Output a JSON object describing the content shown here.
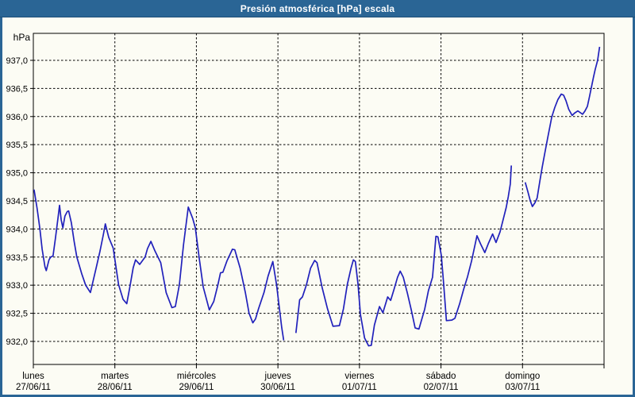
{
  "window": {
    "title": "Presión atmosférica [hPa] escala"
  },
  "colors": {
    "titlebar": "#2A6595",
    "titlebar_edge": "#1D4E78",
    "frame": "#2A6595",
    "content_background": "#FCFCF4",
    "line": "#2121BB",
    "grid": "#000000",
    "text": "#000000"
  },
  "chart_data": {
    "type": "line",
    "title": "Presión atmosférica [hPa] escala",
    "unit_label": "hPa",
    "ylabel": "hPa",
    "xlabel": "",
    "grid": "dashed",
    "legend": "none",
    "ylim": [
      931.59,
      937.48
    ],
    "x_range_hours": [
      0,
      168
    ],
    "y_ticks": [
      "937,0",
      "936,5",
      "936,0",
      "935,5",
      "935,0",
      "934,5",
      "934,0",
      "933,5",
      "933,0",
      "932,5",
      "932,0"
    ],
    "y_tick_values": [
      937.0,
      936.5,
      936.0,
      935.5,
      935.0,
      934.5,
      934.0,
      933.5,
      933.0,
      932.5,
      932.0
    ],
    "x_days": [
      {
        "name": "lunes",
        "date": "27/06/11"
      },
      {
        "name": "martes",
        "date": "28/06/11"
      },
      {
        "name": "miércoles",
        "date": "29/06/11"
      },
      {
        "name": "jueves",
        "date": "30/06/11"
      },
      {
        "name": "viernes",
        "date": "01/07/11"
      },
      {
        "name": "sábado",
        "date": "02/07/11"
      },
      {
        "name": "domingo",
        "date": "03/07/11"
      }
    ],
    "series": [
      {
        "name": "presión atmosférica",
        "color": "#2121BB",
        "x_unit": "hours_from_monday_00",
        "segments": [
          [
            [
              0.2,
              934.7
            ],
            [
              1.1,
              934.37
            ],
            [
              1.9,
              934.02
            ],
            [
              2.6,
              933.64
            ],
            [
              3.4,
              933.33
            ],
            [
              3.8,
              933.26
            ],
            [
              4.6,
              933.45
            ],
            [
              5.1,
              933.5
            ],
            [
              5.8,
              933.52
            ],
            [
              6.5,
              933.83
            ],
            [
              7.3,
              934.21
            ],
            [
              7.7,
              934.42
            ],
            [
              8.2,
              934.16
            ],
            [
              8.7,
              934.02
            ],
            [
              9.3,
              934.23
            ],
            [
              10.0,
              934.31
            ],
            [
              10.4,
              934.32
            ],
            [
              11.2,
              934.11
            ],
            [
              12.0,
              933.78
            ],
            [
              12.8,
              933.5
            ],
            [
              14.2,
              933.21
            ],
            [
              15.4,
              933.0
            ],
            [
              16.8,
              932.87
            ],
            [
              18.5,
              933.31
            ],
            [
              19.6,
              933.6
            ],
            [
              20.6,
              933.9
            ],
            [
              21.2,
              934.09
            ],
            [
              22.2,
              933.85
            ],
            [
              23.5,
              933.66
            ],
            [
              25.1,
              933.01
            ],
            [
              26.4,
              932.75
            ],
            [
              27.5,
              932.67
            ],
            [
              28.5,
              933.0
            ],
            [
              29.4,
              933.31
            ],
            [
              30.1,
              933.45
            ],
            [
              31.3,
              933.37
            ],
            [
              32.9,
              933.5
            ],
            [
              33.6,
              933.65
            ],
            [
              34.6,
              933.78
            ],
            [
              35.8,
              933.61
            ],
            [
              37.5,
              933.4
            ],
            [
              39.1,
              932.87
            ],
            [
              40.8,
              932.6
            ],
            [
              41.8,
              932.62
            ],
            [
              43.0,
              933.01
            ],
            [
              44.2,
              933.72
            ],
            [
              45.6,
              934.39
            ],
            [
              46.9,
              934.19
            ],
            [
              47.7,
              934.02
            ],
            [
              48.8,
              933.49
            ],
            [
              50.0,
              932.97
            ],
            [
              51.8,
              932.56
            ],
            [
              53.1,
              932.71
            ],
            [
              54.3,
              933.0
            ],
            [
              55.1,
              933.22
            ],
            [
              55.8,
              933.23
            ],
            [
              57.0,
              933.43
            ],
            [
              58.6,
              933.64
            ],
            [
              59.3,
              933.63
            ],
            [
              60.9,
              933.3
            ],
            [
              62.4,
              932.87
            ],
            [
              63.5,
              932.5
            ],
            [
              64.6,
              932.33
            ],
            [
              65.4,
              932.4
            ],
            [
              66.3,
              932.58
            ],
            [
              67.9,
              932.87
            ],
            [
              69.1,
              933.16
            ],
            [
              70.5,
              933.42
            ],
            [
              71.6,
              933.01
            ],
            [
              72.4,
              932.6
            ],
            [
              73.1,
              932.25
            ],
            [
              73.7,
              932.02
            ]
          ],
          [
            [
              77.3,
              932.15
            ],
            [
              78.4,
              932.74
            ],
            [
              79.2,
              932.79
            ],
            [
              80.4,
              933.01
            ],
            [
              81.6,
              933.3
            ],
            [
              82.8,
              933.44
            ],
            [
              83.5,
              933.4
            ],
            [
              85.0,
              932.96
            ],
            [
              86.6,
              932.58
            ],
            [
              88.2,
              932.27
            ],
            [
              90.1,
              932.28
            ],
            [
              91.3,
              932.58
            ],
            [
              92.4,
              933.01
            ],
            [
              93.5,
              933.3
            ],
            [
              94.2,
              933.45
            ],
            [
              94.8,
              933.42
            ],
            [
              95.6,
              933.01
            ],
            [
              96.3,
              932.48
            ],
            [
              97.5,
              932.06
            ],
            [
              98.7,
              931.92
            ],
            [
              99.5,
              931.93
            ],
            [
              100.4,
              932.29
            ],
            [
              101.9,
              932.62
            ],
            [
              102.9,
              932.51
            ],
            [
              104.3,
              932.79
            ],
            [
              105.2,
              932.73
            ],
            [
              106.2,
              932.93
            ],
            [
              107.2,
              933.14
            ],
            [
              108.0,
              933.25
            ],
            [
              108.9,
              933.14
            ],
            [
              110.1,
              932.86
            ],
            [
              111.3,
              932.55
            ],
            [
              112.4,
              932.24
            ],
            [
              113.5,
              932.22
            ],
            [
              115.2,
              932.57
            ],
            [
              116.3,
              932.9
            ],
            [
              117.5,
              933.14
            ],
            [
              118.5,
              933.87
            ],
            [
              119.1,
              933.86
            ],
            [
              120.1,
              933.53
            ],
            [
              120.8,
              933.01
            ],
            [
              121.6,
              932.37
            ],
            [
              123.2,
              932.38
            ],
            [
              124.1,
              932.41
            ],
            [
              125.5,
              932.67
            ],
            [
              126.7,
              932.93
            ],
            [
              127.8,
              933.15
            ],
            [
              129.0,
              933.43
            ],
            [
              130.6,
              933.88
            ],
            [
              131.7,
              933.73
            ],
            [
              132.9,
              933.58
            ],
            [
              134.0,
              933.75
            ],
            [
              135.2,
              933.91
            ],
            [
              136.2,
              933.76
            ],
            [
              137.4,
              933.95
            ],
            [
              138.4,
              934.19
            ],
            [
              139.2,
              934.38
            ],
            [
              139.8,
              934.57
            ],
            [
              140.4,
              934.8
            ],
            [
              140.7,
              935.13
            ]
          ],
          [
            [
              144.8,
              934.83
            ],
            [
              145.6,
              934.66
            ],
            [
              146.3,
              934.5
            ],
            [
              146.9,
              934.4
            ],
            [
              147.7,
              934.47
            ],
            [
              148.3,
              934.55
            ],
            [
              149.1,
              934.85
            ],
            [
              149.8,
              935.1
            ],
            [
              150.6,
              935.36
            ],
            [
              151.4,
              935.62
            ],
            [
              152.6,
              935.99
            ],
            [
              153.5,
              936.16
            ],
            [
              154.4,
              936.3
            ],
            [
              155.4,
              936.4
            ],
            [
              156.1,
              936.38
            ],
            [
              156.8,
              936.28
            ],
            [
              157.6,
              936.13
            ],
            [
              158.6,
              936.02
            ],
            [
              159.3,
              936.06
            ],
            [
              160.3,
              936.1
            ],
            [
              161.0,
              936.07
            ],
            [
              161.7,
              936.04
            ],
            [
              162.4,
              936.1
            ],
            [
              163.1,
              936.18
            ],
            [
              163.7,
              936.35
            ],
            [
              164.3,
              936.53
            ],
            [
              164.9,
              936.7
            ],
            [
              165.4,
              936.84
            ],
            [
              166.1,
              937.0
            ],
            [
              166.7,
              937.24
            ]
          ]
        ]
      }
    ]
  }
}
